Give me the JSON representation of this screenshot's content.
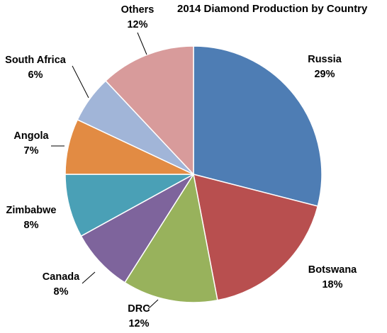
{
  "chart_data": {
    "type": "pie",
    "title": "2014 Diamond Production by Country",
    "start_angle_deg": 0,
    "direction": "clockwise",
    "slices": [
      {
        "name": "Russia",
        "percent": 29,
        "label": "29%",
        "color": "#4e7db4"
      },
      {
        "name": "Botswana",
        "percent": 18,
        "label": "18%",
        "color": "#b84f4f"
      },
      {
        "name": "DRC",
        "percent": 12,
        "label": "12%",
        "color": "#98b25c"
      },
      {
        "name": "Canada",
        "percent": 8,
        "label": "8%",
        "color": "#7e649c"
      },
      {
        "name": "Zimbabwe",
        "percent": 8,
        "label": "8%",
        "color": "#4aa0b6"
      },
      {
        "name": "Angola",
        "percent": 7,
        "label": "7%",
        "color": "#e28b43"
      },
      {
        "name": "South Africa",
        "percent": 6,
        "label": "6%",
        "color": "#a1b5d8"
      },
      {
        "name": "Others",
        "percent": 12,
        "label": "12%",
        "color": "#d89b9b"
      }
    ]
  }
}
